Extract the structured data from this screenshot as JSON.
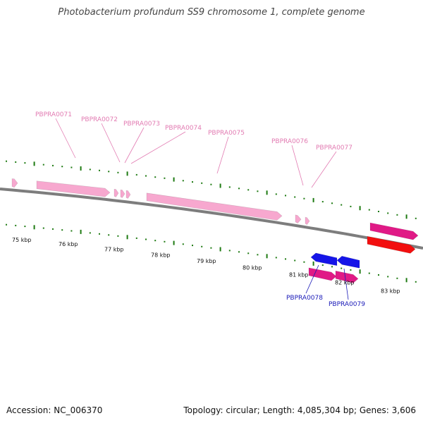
{
  "title": "Photobacterium profundum SS9 chromosome 1, complete genome",
  "accession": "Accession: NC_006370",
  "summary": "Topology: circular; Length: 4,085,304 bp; Genes: 3,606",
  "colors": {
    "forward_gene": "#f7a8cf",
    "forward_gene_edge": "#e789ba",
    "reverse_gene": "#1515e8",
    "magenta_gene": "#e01a86",
    "red_gene": "#f20f0f",
    "backbone": "#7d7d7d",
    "tick": "#1e7a12",
    "forward_label": "#e27bb2",
    "reverse_label": "#1a1ab8"
  },
  "tick_labels": [
    "75 kbp",
    "76 kbp",
    "77 kbp",
    "78 kbp",
    "79 kbp",
    "80 kbp",
    "81 kbp",
    "82 kbp",
    "83 kbp"
  ],
  "forward_labels": [
    "PBPRA0071",
    "PBPRA0072",
    "PBPRA0073",
    "PBPRA0074",
    "PBPRA0075",
    "PBPRA0076",
    "PBPRA0077"
  ],
  "reverse_labels": [
    "PBPRA0078",
    "PBPRA0079"
  ]
}
